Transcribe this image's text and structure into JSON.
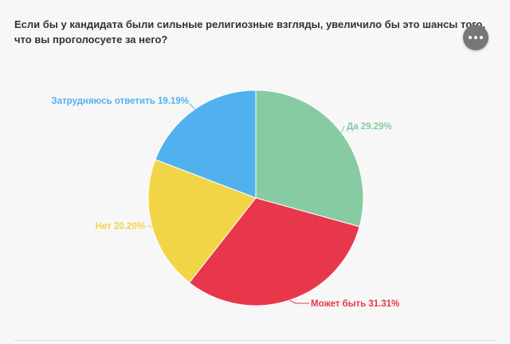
{
  "question": "Если бы у кандидата были сильные религиозные взгляды, увеличило бы это шансы того, что вы проголосуете за него?",
  "menu": {
    "icon": "more-horizontal-icon"
  },
  "chart_data": {
    "type": "pie",
    "title": "Если бы у кандидата были сильные религиозные взгляды, увеличило бы это шансы того, что вы проголосуете за него?",
    "slices": [
      {
        "label": "Да",
        "value": 29.29,
        "display": "Да 29.29%",
        "color": "#87cba3"
      },
      {
        "label": "Может быть",
        "value": 31.31,
        "display": "Может быть 31.31%",
        "color": "#e8374b"
      },
      {
        "label": "Нет",
        "value": 20.2,
        "display": "Нет 20.20%",
        "color": "#f2d447"
      },
      {
        "label": "Затрудняюсь ответить",
        "value": 19.19,
        "display": "Затрудняюсь ответить 19.19%",
        "color": "#51b1ef"
      }
    ]
  }
}
